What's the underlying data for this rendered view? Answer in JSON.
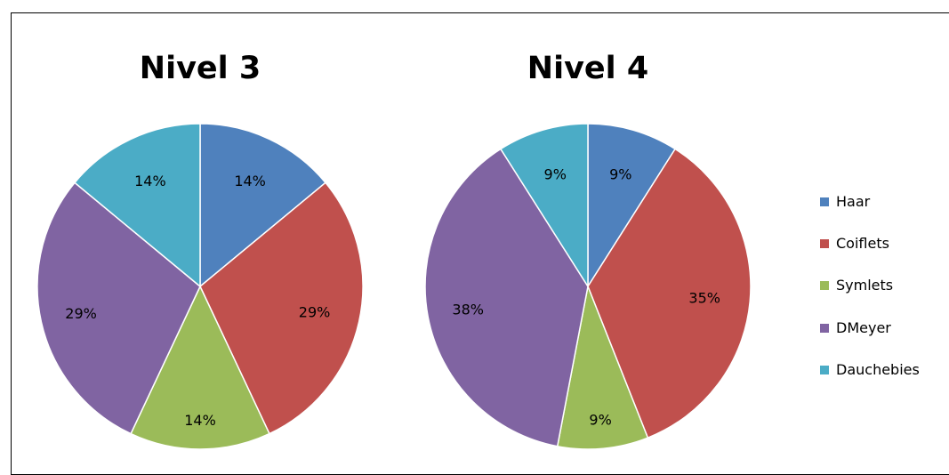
{
  "chart_data": [
    {
      "type": "pie",
      "title": "Nivel 3",
      "categories": [
        "Haar",
        "Coiflets",
        "Symlets",
        "DMeyer",
        "Dauchebies"
      ],
      "values": [
        14,
        29,
        14,
        29,
        14
      ],
      "labels": [
        "14%",
        "29%",
        "14%",
        "29%",
        "14%"
      ]
    },
    {
      "type": "pie",
      "title": "Nivel 4",
      "categories": [
        "Haar",
        "Coiflets",
        "Symlets",
        "DMeyer",
        "Dauchebies"
      ],
      "values": [
        9,
        35,
        9,
        38,
        9
      ],
      "labels": [
        "9%",
        "35%",
        "9%",
        "38%",
        "9%"
      ]
    }
  ],
  "legend": {
    "placement": "right",
    "entries": [
      "Haar",
      "Coiflets",
      "Symlets",
      "DMeyer",
      "Dauchebies"
    ]
  },
  "colors": [
    "#4f81bd",
    "#c0504d",
    "#9bbb59",
    "#8064a2",
    "#4bacc6"
  ]
}
